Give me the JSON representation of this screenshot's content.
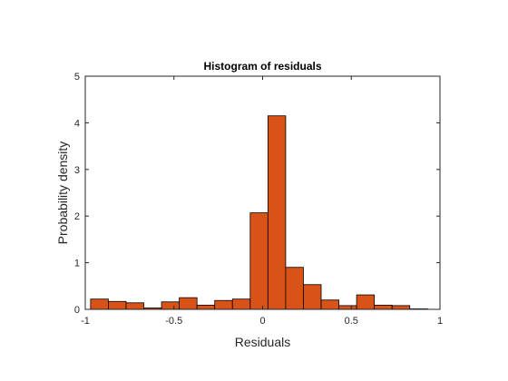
{
  "chart_data": {
    "type": "bar",
    "title": "Histogram of residuals",
    "xlabel": "Residuals",
    "ylabel": "Probability density",
    "xlim": [
      -1,
      1
    ],
    "ylim": [
      0,
      5
    ],
    "x_ticks": [
      "-1",
      "-0.5",
      "0",
      "0.5",
      "1"
    ],
    "y_ticks": [
      "0",
      "1",
      "2",
      "3",
      "4",
      "5"
    ],
    "bin_edges": [
      -0.97,
      -0.87,
      -0.77,
      -0.67,
      -0.57,
      -0.47,
      -0.37,
      -0.27,
      -0.17,
      -0.07,
      0.03,
      0.13,
      0.23,
      0.33,
      0.43,
      0.53,
      0.63,
      0.73,
      0.83,
      0.93
    ],
    "values": [
      0.22,
      0.17,
      0.14,
      0.03,
      0.16,
      0.25,
      0.09,
      0.19,
      0.22,
      2.07,
      4.15,
      0.9,
      0.53,
      0.2,
      0.08,
      0.31,
      0.09,
      0.08,
      0.01
    ],
    "grid": false,
    "bar_color": "#D95319",
    "edge_color": "#000000"
  }
}
